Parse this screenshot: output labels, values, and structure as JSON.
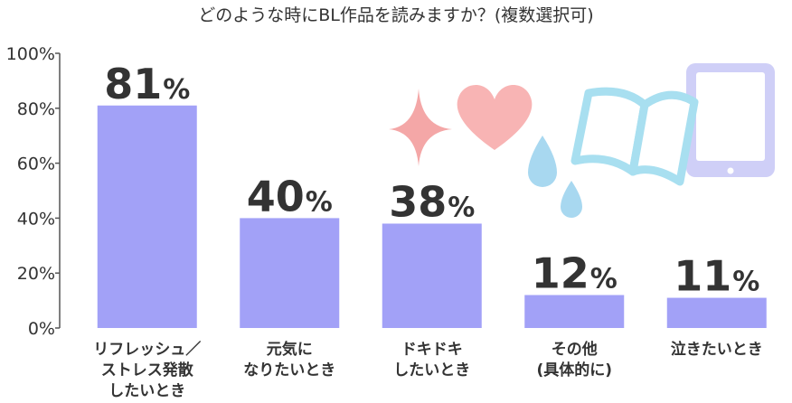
{
  "chart_data": {
    "type": "bar",
    "title": "どのような時にBL作品を読みますか？(複数選択可)",
    "categories": [
      [
        "リフレッシュ／",
        "ストレス発散",
        "したいとき"
      ],
      [
        "元気に",
        "なりたいとき"
      ],
      [
        "ドキドキ",
        "したいとき"
      ],
      [
        "その他",
        "(具体的に)"
      ],
      [
        "泣きたいとき"
      ]
    ],
    "values": [
      81,
      40,
      38,
      12,
      11
    ],
    "value_suffix": "%",
    "ylim": [
      0,
      100
    ],
    "yticks": [
      "0%",
      "20%",
      "40%",
      "60%",
      "80%",
      "100%"
    ],
    "bar_color": "#a2a1f7",
    "grid": false
  },
  "decorations": {
    "sparkle_color": "#f4a7a7",
    "heart_color": "#f8b4b4",
    "drops_color": "#a8d8f0",
    "book_color": "#a8dff0",
    "tablet_color": "#cfcff7",
    "icons": [
      "sparkle-icon",
      "heart-icon",
      "water-drop-icon",
      "open-book-icon",
      "tablet-icon"
    ]
  }
}
